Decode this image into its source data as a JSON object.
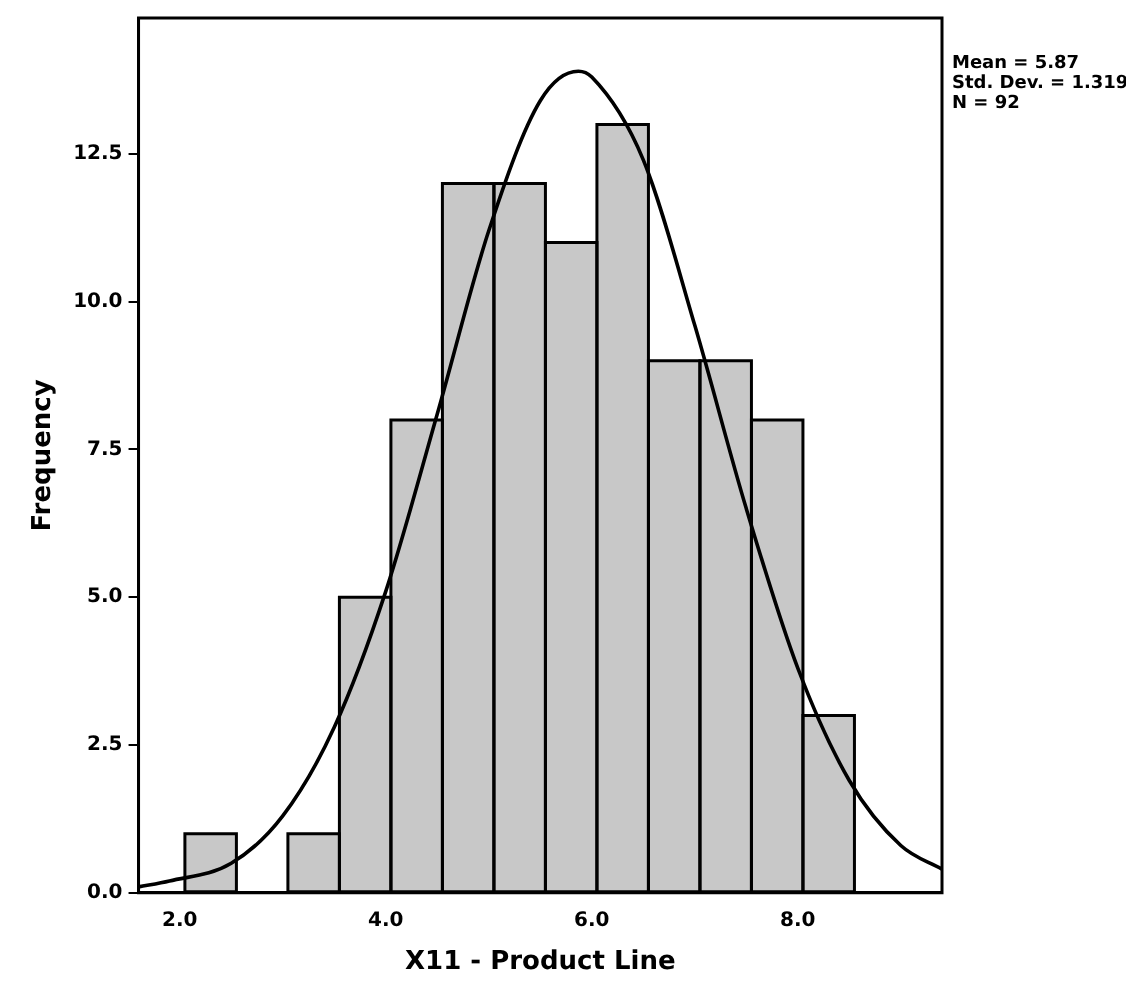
{
  "chart_data": {
    "type": "histogram",
    "xlabel": "X11 - Product Line",
    "ylabel": "Frequency",
    "bins": [
      2.05,
      2.55,
      3.05,
      3.55,
      4.05,
      4.55,
      5.05,
      5.55,
      6.05,
      6.55,
      7.05,
      7.55,
      8.05,
      8.55
    ],
    "values": [
      1,
      0,
      1,
      5,
      8,
      12,
      12,
      11,
      13,
      9,
      9,
      8,
      3
    ],
    "color": "#c8c8c8",
    "series": [
      {
        "type": "line",
        "color": "#000000",
        "x": [
          1.6,
          1.9,
          2.5,
          3.0,
          3.5,
          4.0,
          4.5,
          5.0,
          5.5,
          5.87,
          6.0,
          6.5,
          7.0,
          7.5,
          8.0,
          8.5,
          9.0,
          9.4
        ],
        "values": [
          0.1,
          0.2,
          0.5,
          1.3,
          2.8,
          5.1,
          8.1,
          11.2,
          13.4,
          13.9,
          13.8,
          12.4,
          9.6,
          6.5,
          3.8,
          1.9,
          0.8,
          0.4
        ]
      }
    ],
    "xlim": [
      1.6,
      9.4
    ],
    "xticks": [
      {
        "value": 2,
        "label": "2.0"
      },
      {
        "value": 4,
        "label": "4.0"
      },
      {
        "value": 6,
        "label": "6.0"
      },
      {
        "value": 8,
        "label": "8.0"
      }
    ],
    "ylim": [
      0,
      14.8
    ],
    "yticks": [
      {
        "value": 0,
        "label": "0.0"
      },
      {
        "value": 2.5,
        "label": "2.5"
      },
      {
        "value": 5,
        "label": "5.0"
      },
      {
        "value": 7.5,
        "label": "7.5"
      },
      {
        "value": 10,
        "label": "10.0"
      },
      {
        "value": 12.5,
        "label": "12.5"
      }
    ],
    "annotations": [
      "Mean = 5.87",
      "Std. Dev. = 1.319",
      "N = 92"
    ],
    "legend": false,
    "grid": false,
    "marker": "none"
  }
}
